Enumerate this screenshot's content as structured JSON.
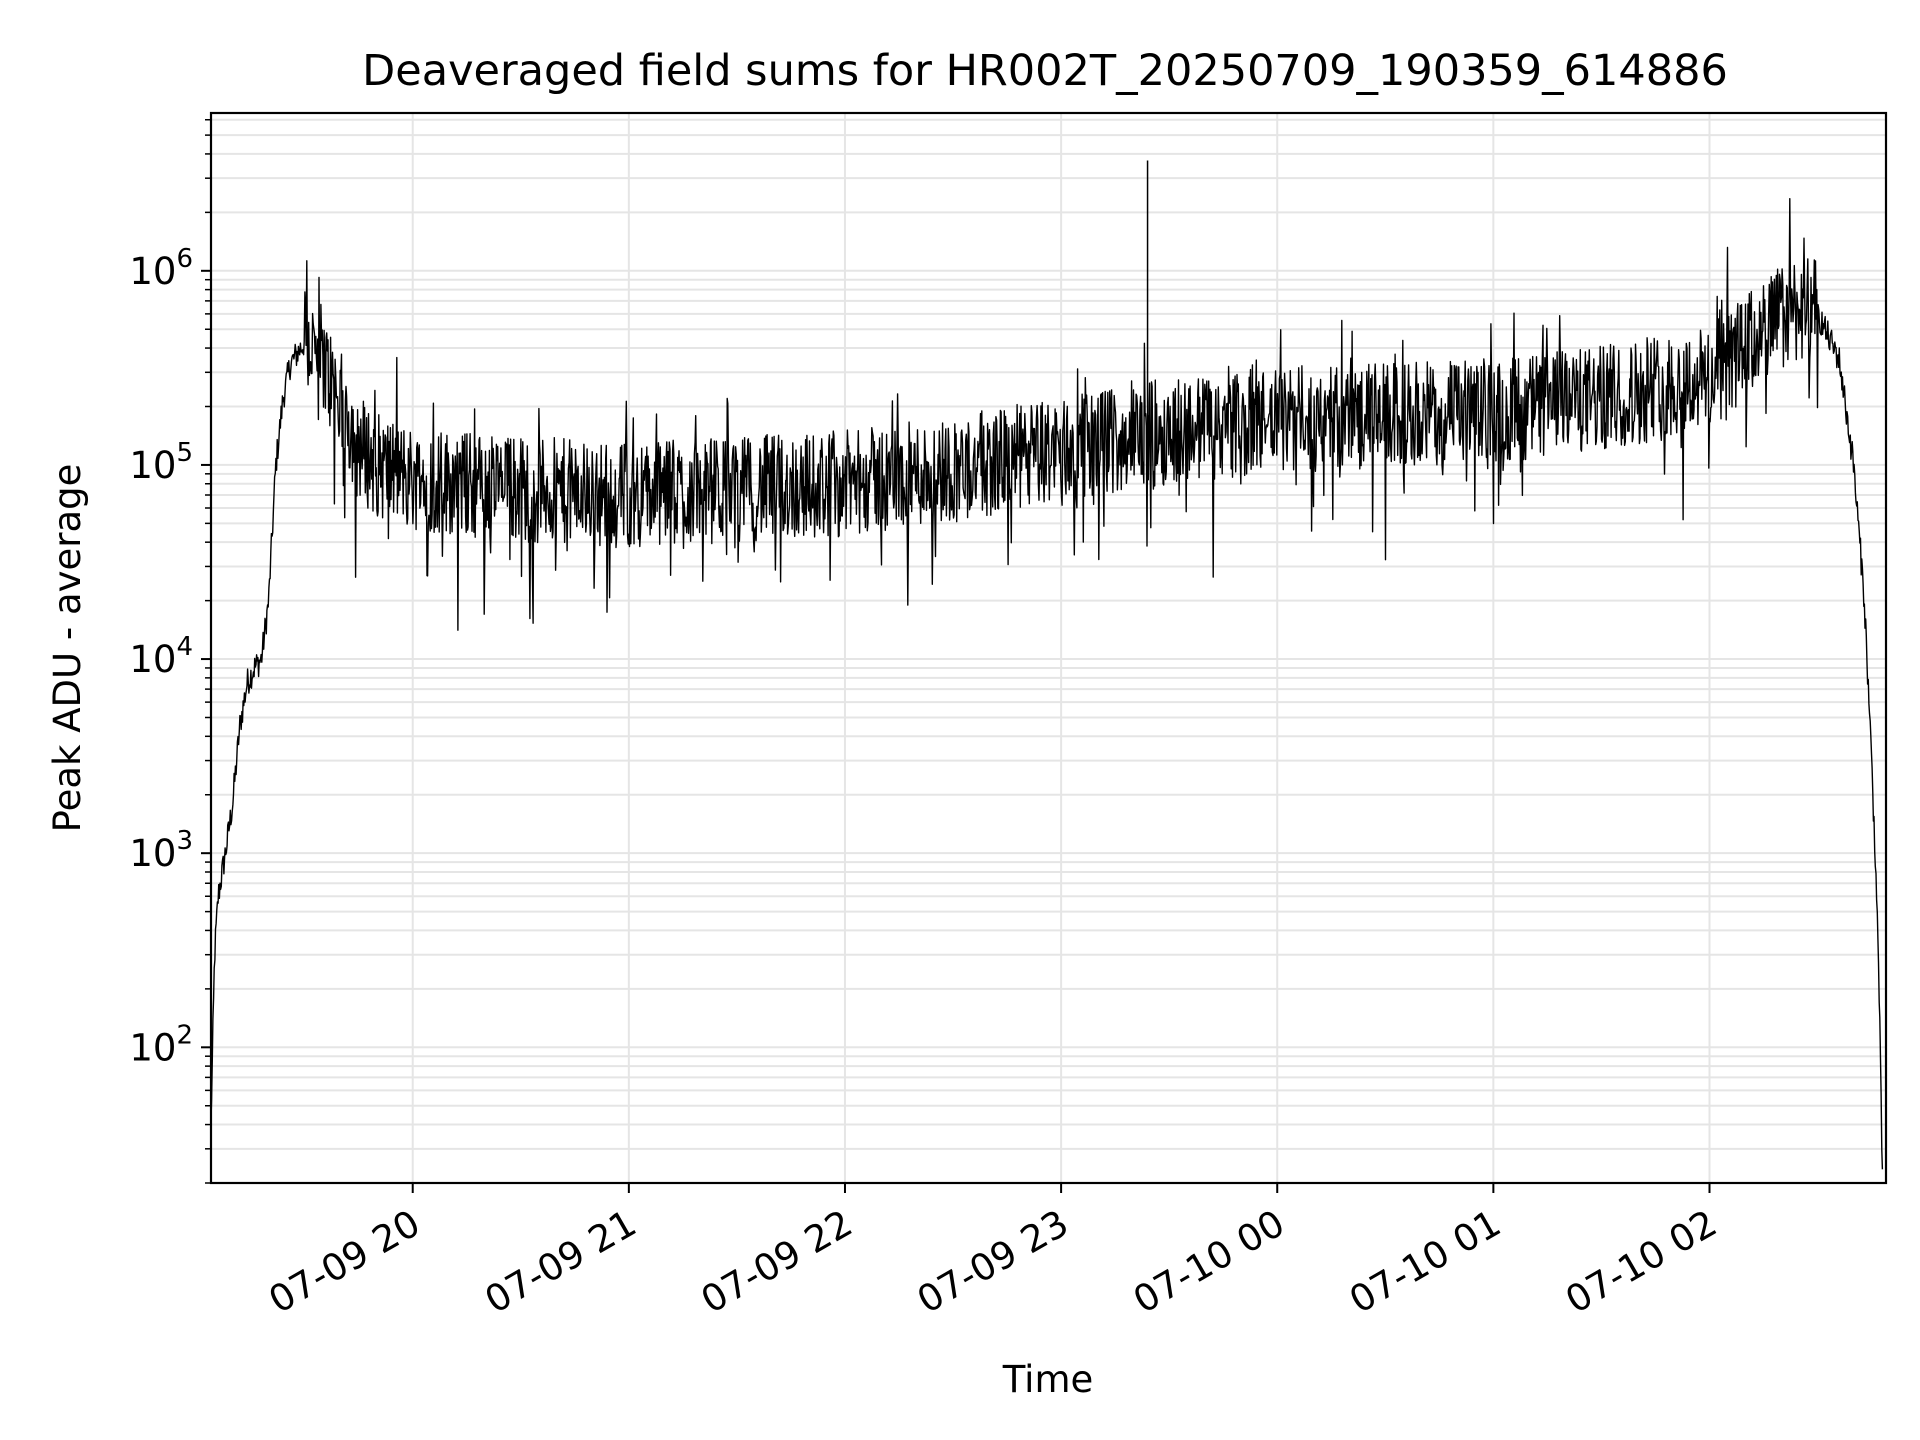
{
  "chart_data": {
    "type": "line",
    "title": "Deaveraged field sums for HR002T_20250709_190359_614886",
    "xlabel": "Time",
    "ylabel": "Peak ADU - average",
    "yscale": "log",
    "ylim": [
      20,
      6500000
    ],
    "xlim": [
      "2025-07-09 19:04",
      "2025-07-10 02:49"
    ],
    "grid": true,
    "line_color": "#000000",
    "grid_color": "#e5e5e5",
    "x_ticks": [
      {
        "value": "2025-07-09 20:00",
        "label": "07-09 20"
      },
      {
        "value": "2025-07-09 21:00",
        "label": "07-09 21"
      },
      {
        "value": "2025-07-09 22:00",
        "label": "07-09 22"
      },
      {
        "value": "2025-07-09 23:00",
        "label": "07-09 23"
      },
      {
        "value": "2025-07-10 00:00",
        "label": "07-10 00"
      },
      {
        "value": "2025-07-10 01:00",
        "label": "07-10 01"
      },
      {
        "value": "2025-07-10 02:00",
        "label": "07-10 02"
      }
    ],
    "y_ticks": [
      {
        "value": 100,
        "base": "10",
        "exp": "2"
      },
      {
        "value": 1000,
        "base": "10",
        "exp": "3"
      },
      {
        "value": 10000,
        "base": "10",
        "exp": "4"
      },
      {
        "value": 100000,
        "base": "10",
        "exp": "5"
      },
      {
        "value": 1000000,
        "base": "10",
        "exp": "6"
      }
    ],
    "series": [
      {
        "x": [
          "2025-07-09 19:04",
          "2025-07-09 19:05",
          "2025-07-09 19:06",
          "2025-07-09 19:08",
          "2025-07-09 19:10",
          "2025-07-09 19:12",
          "2025-07-09 19:14",
          "2025-07-09 19:16",
          "2025-07-09 19:18",
          "2025-07-09 19:20",
          "2025-07-09 19:22",
          "2025-07-09 19:24",
          "2025-07-09 19:26",
          "2025-07-09 19:30",
          "2025-07-09 19:34",
          "2025-07-09 19:38",
          "2025-07-09 19:42",
          "2025-07-09 19:46",
          "2025-07-09 19:50",
          "2025-07-09 20:00",
          "2025-07-09 20:30",
          "2025-07-09 21:00",
          "2025-07-09 21:30",
          "2025-07-09 22:00",
          "2025-07-09 22:30",
          "2025-07-09 23:00",
          "2025-07-09 23:30",
          "2025-07-10 00:00",
          "2025-07-10 00:30",
          "2025-07-10 01:00",
          "2025-07-10 01:30",
          "2025-07-10 02:00",
          "2025-07-10 02:10",
          "2025-07-10 02:18",
          "2025-07-10 02:24",
          "2025-07-10 02:30",
          "2025-07-10 02:36",
          "2025-07-10 02:40",
          "2025-07-10 02:43",
          "2025-07-10 02:45",
          "2025-07-10 02:46",
          "2025-07-10 02:47",
          "2025-07-10 02:48"
        ],
        "y": [
          40,
          300,
          600,
          1000,
          1800,
          4500,
          7500,
          9000,
          10000,
          20000,
          100000,
          220000,
          330000,
          430000,
          380000,
          250000,
          170000,
          120000,
          100000,
          85000,
          75000,
          70000,
          75000,
          80000,
          95000,
          120000,
          150000,
          170000,
          180000,
          190000,
          220000,
          280000,
          400000,
          550000,
          650000,
          600000,
          350000,
          100000,
          20000,
          3000,
          1000,
          250,
          20
        ]
      }
    ],
    "annotations": [
      {
        "x": "2025-07-09 23:24",
        "y": 3700000,
        "note": "single spike"
      }
    ]
  }
}
